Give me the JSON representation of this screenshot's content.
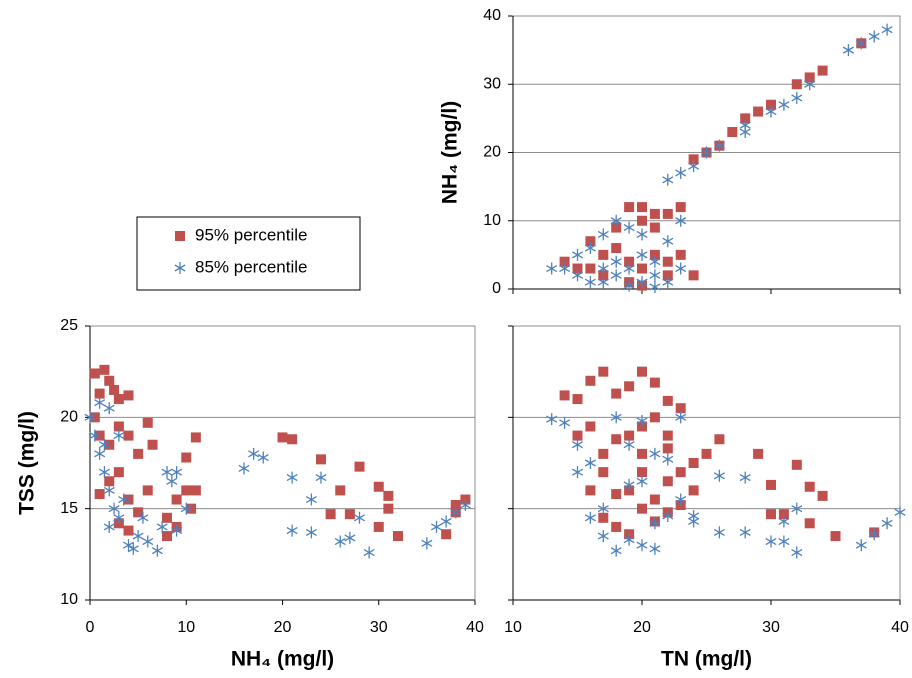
{
  "chart_data": [
    {
      "type": "scatter",
      "ylabel": "NH₄ (mg/l)",
      "xlim": [
        10,
        40
      ],
      "xticks": [
        10,
        20,
        30,
        40
      ],
      "ylim": [
        0,
        40
      ],
      "yticks": [
        0,
        10,
        20,
        30,
        40
      ],
      "grid": true,
      "show_x_tick_labels": false,
      "show_y_tick_labels": true,
      "legend": true,
      "series": [
        {
          "name": "95% percentile",
          "color": "#c0504d",
          "marker": "square",
          "x": [
            24,
            25,
            26,
            27,
            28,
            29,
            30,
            32,
            33,
            34,
            37,
            14,
            15,
            16,
            17,
            18,
            19,
            20,
            21,
            22,
            23,
            17,
            19,
            20,
            21,
            22,
            23,
            24,
            18,
            20,
            21,
            16,
            19,
            22,
            20
          ],
          "values": [
            19,
            20,
            21,
            23,
            25,
            26,
            27,
            30,
            31,
            32,
            36,
            4,
            3,
            7,
            5,
            9,
            12,
            12,
            9,
            11,
            12,
            2,
            1,
            3,
            5,
            4,
            5,
            2,
            6,
            10,
            11,
            3,
            4,
            2,
            0.5
          ]
        },
        {
          "name": "85% percentile",
          "color": "#4f81bd",
          "marker": "star",
          "x": [
            22,
            23,
            24,
            25,
            26,
            28,
            28,
            30,
            31,
            32,
            33,
            36,
            37,
            38,
            39,
            13,
            14,
            15,
            16,
            17,
            18,
            19,
            20,
            21,
            22,
            23,
            15,
            16,
            17,
            18,
            19,
            20,
            21,
            22,
            23,
            19,
            20,
            18,
            21,
            17
          ],
          "values": [
            16,
            17,
            18,
            20,
            21,
            23,
            24,
            26,
            27,
            28,
            30,
            35,
            36,
            37,
            38,
            3,
            3,
            5,
            6,
            8,
            10,
            9,
            8,
            2,
            1,
            3,
            2,
            1,
            1,
            2,
            3,
            1,
            4,
            7,
            10,
            0.5,
            5,
            4,
            0.3,
            3
          ]
        }
      ]
    },
    {
      "type": "scatter",
      "ylabel": "TSS (mg/l)",
      "xlabel": "NH₄ (mg/l)",
      "xlim": [
        0,
        40
      ],
      "xticks": [
        0,
        10,
        20,
        30,
        40
      ],
      "ylim": [
        10,
        25
      ],
      "yticks": [
        10,
        15,
        20,
        25
      ],
      "grid": true,
      "show_x_tick_labels": true,
      "show_y_tick_labels": true,
      "legend": false,
      "series": [
        {
          "color": "#c0504d",
          "marker": "square",
          "x": [
            0.5,
            1,
            1.5,
            2,
            2.5,
            3,
            4,
            0.5,
            1,
            2,
            3,
            4,
            5,
            6,
            6.5,
            1,
            2,
            3,
            4,
            5,
            6,
            8,
            9,
            9,
            10,
            10,
            11,
            11,
            10.5,
            20,
            21,
            24,
            25,
            26,
            27,
            28,
            30,
            30,
            31,
            31,
            32,
            37,
            38,
            39,
            38,
            4,
            3,
            8
          ],
          "values": [
            22.4,
            21.3,
            22.6,
            22,
            21.5,
            21,
            21.2,
            20,
            19,
            18.5,
            19.5,
            19,
            18,
            19.7,
            18.5,
            15.8,
            16.5,
            17,
            15.5,
            14.8,
            16,
            14.5,
            15.5,
            14,
            17.8,
            16,
            18.9,
            16,
            15,
            18.9,
            18.8,
            17.7,
            14.7,
            16,
            14.7,
            17.3,
            16.2,
            14,
            15,
            15.7,
            13.5,
            13.6,
            14.8,
            15.5,
            15.2,
            13.8,
            14.2,
            13.5
          ]
        },
        {
          "color": "#4f81bd",
          "marker": "star",
          "x": [
            0,
            0.5,
            1,
            1.5,
            2,
            2,
            2.5,
            3,
            3,
            1,
            4,
            4.5,
            5,
            5.5,
            6,
            7,
            7.5,
            8,
            8.5,
            9,
            9,
            10,
            16,
            17,
            18,
            21,
            21,
            23,
            23,
            24,
            26,
            27,
            28,
            29,
            35,
            36,
            37,
            38,
            39,
            2,
            3.5,
            1.5
          ],
          "values": [
            20,
            19,
            18,
            17,
            20.5,
            16,
            15,
            14.5,
            19,
            20.8,
            13,
            12.8,
            13.5,
            14.5,
            13.2,
            12.7,
            14,
            17,
            16.5,
            17,
            13.8,
            15,
            17.2,
            18,
            17.8,
            13.8,
            16.7,
            15.5,
            13.7,
            16.7,
            13.2,
            13.4,
            14.5,
            12.6,
            13.1,
            14,
            14.3,
            14.8,
            15.2,
            14,
            15.5,
            18.5
          ]
        }
      ]
    },
    {
      "type": "scatter",
      "xlabel": "TN (mg/l)",
      "xlim": [
        10,
        40
      ],
      "xticks": [
        10,
        20,
        30,
        40
      ],
      "ylim": [
        10,
        25
      ],
      "yticks": [
        10,
        15,
        20,
        25
      ],
      "grid": true,
      "show_x_tick_labels": true,
      "show_y_tick_labels": false,
      "legend": false,
      "series": [
        {
          "color": "#c0504d",
          "marker": "square",
          "x": [
            14,
            15,
            16,
            17,
            18,
            19,
            20,
            21,
            22,
            15,
            16,
            17,
            18,
            19,
            20,
            21,
            22,
            23,
            24,
            25,
            26,
            16,
            17,
            18,
            19,
            20,
            21,
            22,
            23,
            24,
            17,
            18,
            19,
            20,
            21,
            22,
            23,
            29,
            30,
            30,
            31,
            32,
            33,
            33,
            34,
            35,
            38,
            20,
            22
          ],
          "values": [
            21.2,
            21,
            22,
            22.5,
            21.3,
            21.7,
            22.5,
            21.9,
            20.9,
            19,
            19.5,
            18,
            18.8,
            19,
            19.5,
            20,
            19,
            20.5,
            17.5,
            18,
            18.8,
            16,
            17,
            15.8,
            16,
            17,
            15.5,
            16.5,
            17,
            16,
            14.5,
            14,
            13.6,
            15,
            14.3,
            14.8,
            15.2,
            18,
            16.3,
            14.7,
            14.7,
            17.4,
            16.2,
            14.2,
            15.7,
            13.5,
            13.7,
            18,
            18.3
          ]
        },
        {
          "color": "#4f81bd",
          "marker": "star",
          "x": [
            13,
            14,
            15,
            15,
            16,
            16,
            17,
            17,
            18,
            18,
            19,
            19,
            20,
            20,
            21,
            21,
            22,
            22,
            23,
            23,
            24,
            26,
            26,
            28,
            28,
            30,
            31,
            31,
            32,
            32,
            37,
            38,
            39,
            40,
            19,
            20,
            21,
            24
          ],
          "values": [
            19.9,
            19.7,
            18.5,
            17,
            17.5,
            14.5,
            13.5,
            15,
            20,
            12.7,
            13.3,
            16.3,
            13,
            16.5,
            14.2,
            12.8,
            17.7,
            14.6,
            20,
            15.5,
            14.6,
            16.8,
            13.7,
            16.7,
            13.7,
            13.2,
            13.2,
            14.3,
            15,
            12.6,
            13,
            13.6,
            14.2,
            14.8,
            18.5,
            19.8,
            18,
            14.3
          ]
        }
      ]
    }
  ]
}
